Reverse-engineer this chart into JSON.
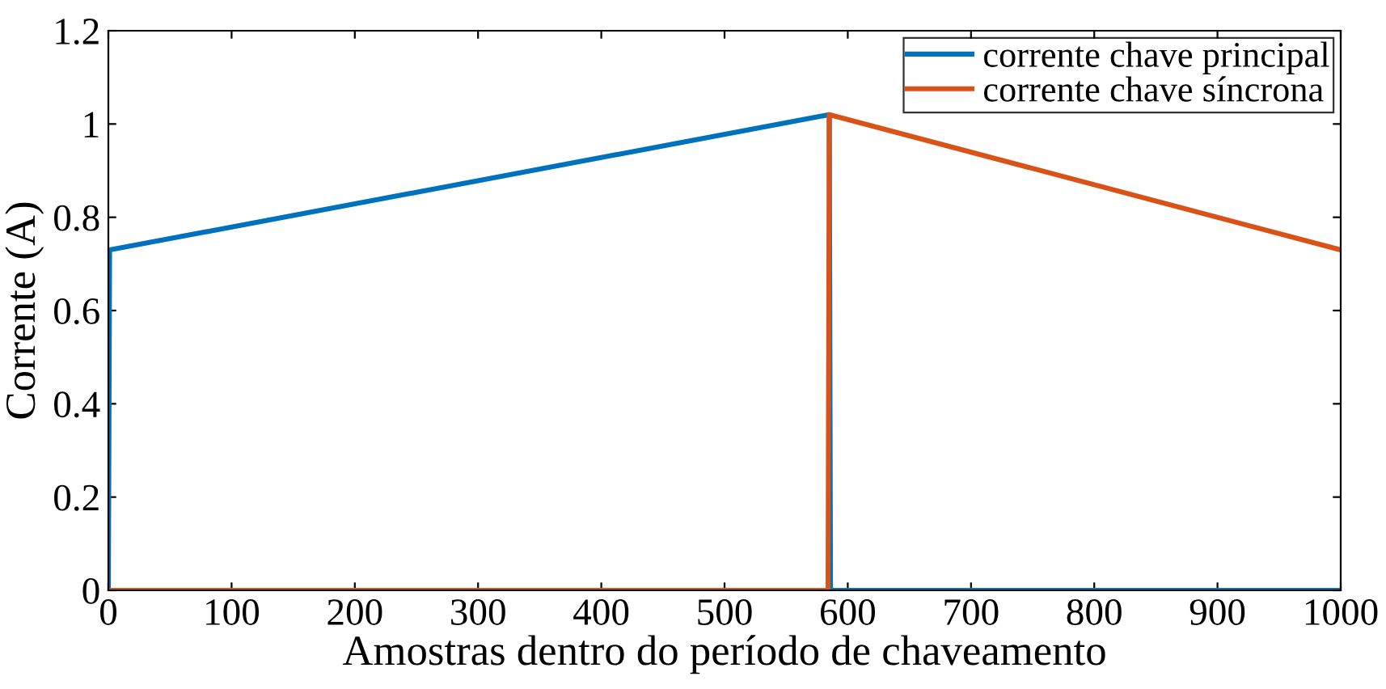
{
  "chart_data": {
    "type": "line",
    "xlabel": "Amostras dentro do período de chaveamento",
    "ylabel": "Corrente (A)",
    "series": [
      {
        "name": "corrente chave principal",
        "color": "#0072bd",
        "x": [
          0,
          1,
          585,
          586,
          1000
        ],
        "values": [
          0,
          0.73,
          1.02,
          0,
          0
        ]
      },
      {
        "name": "corrente chave síncrona",
        "color": "#d95319",
        "x": [
          0,
          584,
          585,
          1000
        ],
        "values": [
          0,
          0,
          1.02,
          0.73
        ]
      }
    ],
    "xlim": [
      0,
      1000
    ],
    "xticks": [
      0,
      100,
      200,
      300,
      400,
      500,
      600,
      700,
      800,
      900,
      1000
    ],
    "ylim": [
      0,
      1.2
    ],
    "yticks": [
      0,
      0.2,
      0.4,
      0.6,
      0.8,
      1,
      1.2
    ],
    "legend": "top right",
    "grid": false,
    "marker": "none",
    "line_style": "solid"
  }
}
